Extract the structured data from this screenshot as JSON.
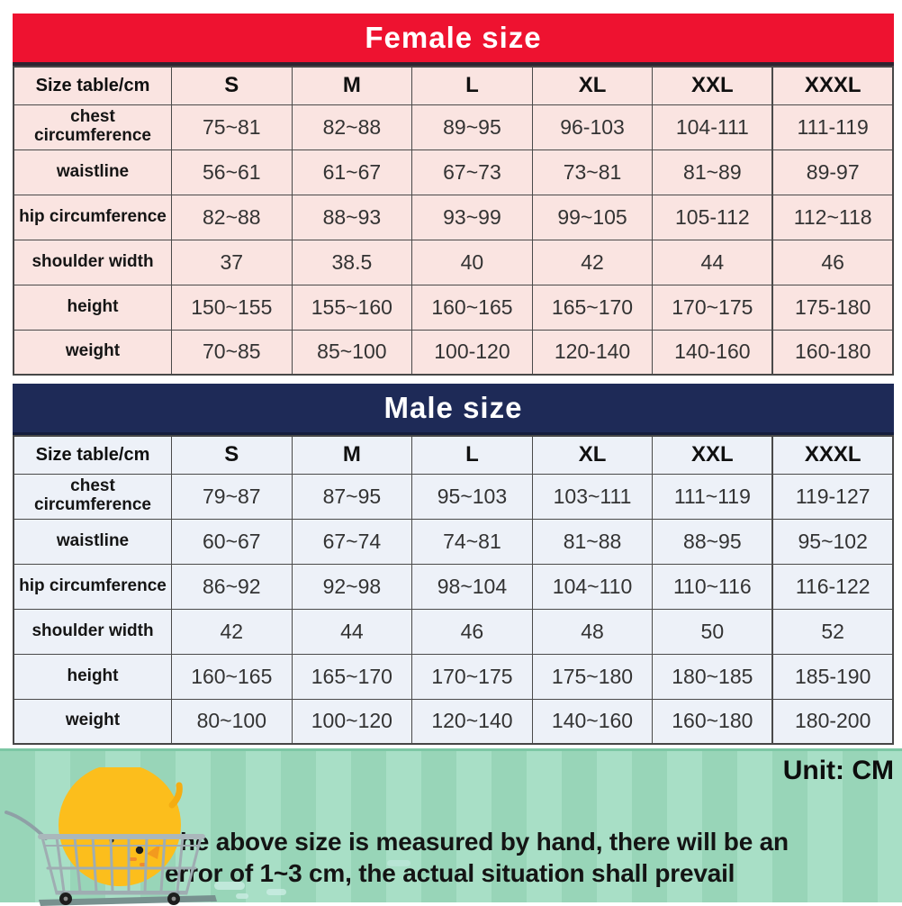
{
  "page": {
    "unit_label": "Unit: CM",
    "note_line1": "The above size is measured by hand, there will be an",
    "note_line2": "error of 1~3 cm, the actual situation shall prevail"
  },
  "chart_data": [
    {
      "type": "table",
      "title": "Female size",
      "columns": [
        "Size table/cm",
        "S",
        "M",
        "L",
        "XL",
        "XXL",
        "XXXL"
      ],
      "rows": [
        {
          "label": "chest circumference",
          "values": [
            "75~81",
            "82~88",
            "89~95",
            "96-103",
            "104-111",
            "111-119"
          ]
        },
        {
          "label": "waistline",
          "values": [
            "56~61",
            "61~67",
            "67~73",
            "73~81",
            "81~89",
            "89-97"
          ]
        },
        {
          "label": "hip circumference",
          "values": [
            "82~88",
            "88~93",
            "93~99",
            "99~105",
            "105-112",
            "112~118"
          ]
        },
        {
          "label": "shoulder width",
          "values": [
            "37",
            "38.5",
            "40",
            "42",
            "44",
            "46"
          ]
        },
        {
          "label": "height",
          "values": [
            "150~155",
            "155~160",
            "160~165",
            "165~170",
            "170~175",
            "175-180"
          ]
        },
        {
          "label": "weight",
          "values": [
            "70~85",
            "85~100",
            "100-120",
            "120-140",
            "140-160",
            "160-180"
          ]
        }
      ]
    },
    {
      "type": "table",
      "title": "Male size",
      "columns": [
        "Size table/cm",
        "S",
        "M",
        "L",
        "XL",
        "XXL",
        "XXXL"
      ],
      "rows": [
        {
          "label": "chest circumference",
          "values": [
            "79~87",
            "87~95",
            "95~103",
            "103~111",
            "111~119",
            "119-127"
          ]
        },
        {
          "label": "waistline",
          "values": [
            "60~67",
            "67~74",
            "74~81",
            "81~88",
            "88~95",
            "95~102"
          ]
        },
        {
          "label": "hip circumference",
          "values": [
            "86~92",
            "92~98",
            "98~104",
            "104~110",
            "110~116",
            "116-122"
          ]
        },
        {
          "label": "shoulder width",
          "values": [
            "42",
            "44",
            "46",
            "48",
            "50",
            "52"
          ]
        },
        {
          "label": "height",
          "values": [
            "160~165",
            "165~170",
            "170~175",
            "175~180",
            "180~185",
            "185-190"
          ]
        },
        {
          "label": "weight",
          "values": [
            "80~100",
            "100~120",
            "120~140",
            "140~160",
            "160~180",
            "180-200"
          ]
        }
      ]
    }
  ],
  "icons": {
    "cart": "shopping-cart-with-chick-icon"
  },
  "colors": {
    "female_accent": "#ee1230",
    "male_accent": "#1e2a57",
    "female_cell": "#fae4e1",
    "male_cell": "#edf1f8",
    "footer_green_dark": "#98d5b8",
    "footer_green_light": "#a8dfc6",
    "chick_yellow": "#fcbe1c"
  }
}
